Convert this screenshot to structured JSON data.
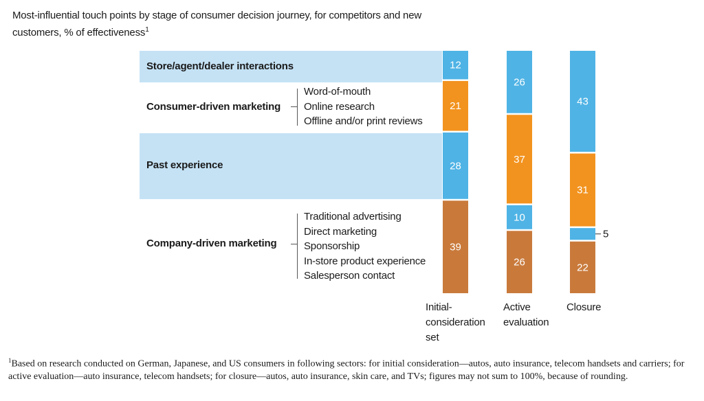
{
  "title": "Most-influential touch points by stage of consumer decision journey, for competitors and new customers, % of effectiveness",
  "title_footnote_mark": "1",
  "colors": {
    "blue": "#4fb3e5",
    "orange": "#f2931f",
    "brown": "#c97a3b",
    "band": "#c5e2f5"
  },
  "rows": [
    {
      "label": "Store/agent/dealer interactions",
      "items": []
    },
    {
      "label": "Consumer-driven marketing",
      "items": [
        "Word-of-mouth",
        "Online research",
        "Offline and/or print reviews"
      ]
    },
    {
      "label": "Past experience",
      "items": []
    },
    {
      "label": "Company-driven marketing",
      "items": [
        "Traditional advertising",
        "Direct marketing",
        "Sponsorship",
        "In-store product experience",
        "Salesperson contact"
      ]
    }
  ],
  "chart_data": {
    "type": "bar",
    "stacked": true,
    "unit": "% of effectiveness",
    "categories": [
      "Initial-consideration set",
      "Active evaluation",
      "Closure"
    ],
    "series": [
      {
        "name": "Store/agent/dealer interactions",
        "color": "#4fb3e5",
        "values": [
          12,
          26,
          43
        ]
      },
      {
        "name": "Consumer-driven marketing",
        "color": "#f2931f",
        "values": [
          21,
          37,
          31
        ]
      },
      {
        "name": "Past experience",
        "color": "#4fb3e5",
        "values": [
          28,
          10,
          5
        ]
      },
      {
        "name": "Company-driven marketing",
        "color": "#c97a3b",
        "values": [
          39,
          26,
          22
        ]
      }
    ]
  },
  "stages": [
    {
      "label": "Initial-consideration set",
      "lines": [
        "Initial-",
        "consideration",
        "set"
      ]
    },
    {
      "label": "Active evaluation",
      "lines": [
        "Active",
        "evaluation"
      ]
    },
    {
      "label": "Closure",
      "lines": [
        "Closure"
      ]
    }
  ],
  "footnote": {
    "mark": "1",
    "text": "Based on research conducted on German, Japanese, and US consumers in following sectors: for initial consideration—autos, auto insurance, telecom handsets and carriers; for active evaluation—auto insurance, telecom handsets; for closure—autos, auto insurance, skin care, and TVs; figures may not sum to 100%, because of rounding."
  }
}
